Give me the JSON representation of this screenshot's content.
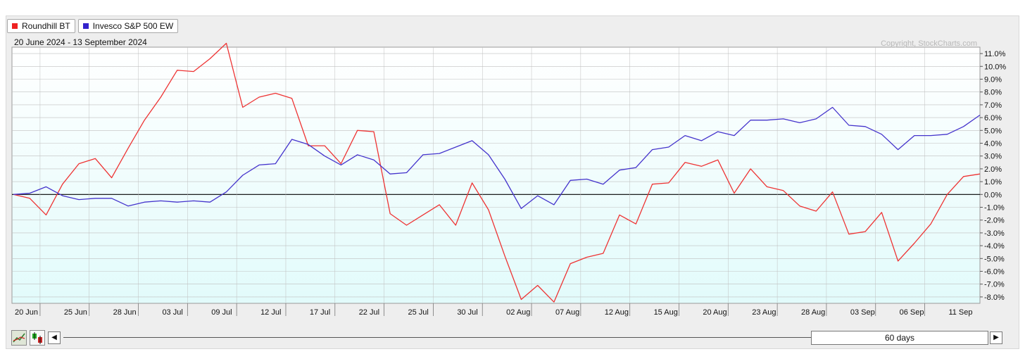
{
  "legend": [
    {
      "label": "Roundhill BT",
      "color": "#ee2222"
    },
    {
      "label": "Invesco S&P 500 EW",
      "color": "#3322cc"
    }
  ],
  "date_range": "20 June 2024 - 13 September 2024",
  "copyright": "Copyright, StockCharts.com",
  "scroll": {
    "window_label": "60 days",
    "left_icon": "triangle-left",
    "right_icon": "triangle-right"
  },
  "tools": [
    "line-chart-icon",
    "candlestick-icon"
  ],
  "colors": {
    "plot_bg_top": "#ffffff",
    "plot_bg_bottom": "#e2fbfb",
    "grid": "#bfbfbf",
    "zero": "#000000"
  },
  "chart_data": {
    "type": "line",
    "x_ticks": [
      "20 Jun",
      "25 Jun",
      "28 Jun",
      "03 Jul",
      "09 Jul",
      "12 Jul",
      "17 Jul",
      "22 Jul",
      "25 Jul",
      "30 Jul",
      "02 Aug",
      "07 Aug",
      "12 Aug",
      "15 Aug",
      "20 Aug",
      "23 Aug",
      "28 Aug",
      "03 Sep",
      "06 Sep",
      "11 Sep"
    ],
    "x_tick_index": [
      0,
      3,
      6,
      9,
      12,
      15,
      18,
      21,
      24,
      27,
      30,
      33,
      36,
      39,
      42,
      45,
      48,
      51,
      54,
      57
    ],
    "y_ticks": [
      "11.0%",
      "10.0%",
      "9.0%",
      "8.0%",
      "7.0%",
      "6.0%",
      "5.0%",
      "4.0%",
      "3.0%",
      "2.0%",
      "1.0%",
      "0.0%",
      "-1.0%",
      "-2.0%",
      "-3.0%",
      "-4.0%",
      "-5.0%",
      "-6.0%",
      "-7.0%",
      "-8.0%"
    ],
    "ylim": [
      -8.5,
      11.5
    ],
    "y_axis_side": "right",
    "grid": true,
    "legend_placement": "top-left",
    "series": [
      {
        "name": "Roundhill BT",
        "color": "#ee3333",
        "values": [
          0.0,
          -0.3,
          -1.6,
          0.8,
          2.4,
          2.8,
          1.3,
          3.6,
          5.8,
          7.6,
          9.7,
          9.6,
          10.6,
          11.8,
          6.8,
          7.6,
          7.9,
          7.5,
          3.8,
          3.8,
          2.4,
          5.0,
          4.9,
          -1.5,
          -2.4,
          -1.6,
          -0.8,
          -2.4,
          0.9,
          -1.2,
          -4.8,
          -8.2,
          -7.1,
          -8.4,
          -5.4,
          -4.9,
          -4.6,
          -1.6,
          -2.3,
          0.8,
          0.9,
          2.5,
          2.2,
          2.7,
          0.1,
          2.0,
          0.6,
          0.3,
          -0.9,
          -1.3,
          0.2,
          -3.1,
          -2.9,
          -1.4,
          -5.2,
          -3.8,
          -2.3,
          0.0,
          1.4,
          1.6
        ]
      },
      {
        "name": "Invesco S&P 500 EW",
        "color": "#4433cc",
        "values": [
          0.0,
          0.1,
          0.6,
          -0.1,
          -0.4,
          -0.3,
          -0.3,
          -0.9,
          -0.6,
          -0.5,
          -0.6,
          -0.5,
          -0.6,
          0.2,
          1.5,
          2.3,
          2.4,
          4.3,
          3.9,
          3.0,
          2.3,
          3.1,
          2.7,
          1.6,
          1.7,
          3.1,
          3.2,
          3.7,
          4.2,
          3.1,
          1.2,
          -1.1,
          -0.1,
          -0.8,
          1.1,
          1.2,
          0.8,
          1.9,
          2.1,
          3.5,
          3.7,
          4.6,
          4.2,
          4.9,
          4.6,
          5.8,
          5.8,
          5.9,
          5.6,
          5.9,
          6.8,
          5.4,
          5.3,
          4.7,
          3.5,
          4.6,
          4.6,
          4.7,
          5.3,
          6.2
        ]
      }
    ]
  }
}
